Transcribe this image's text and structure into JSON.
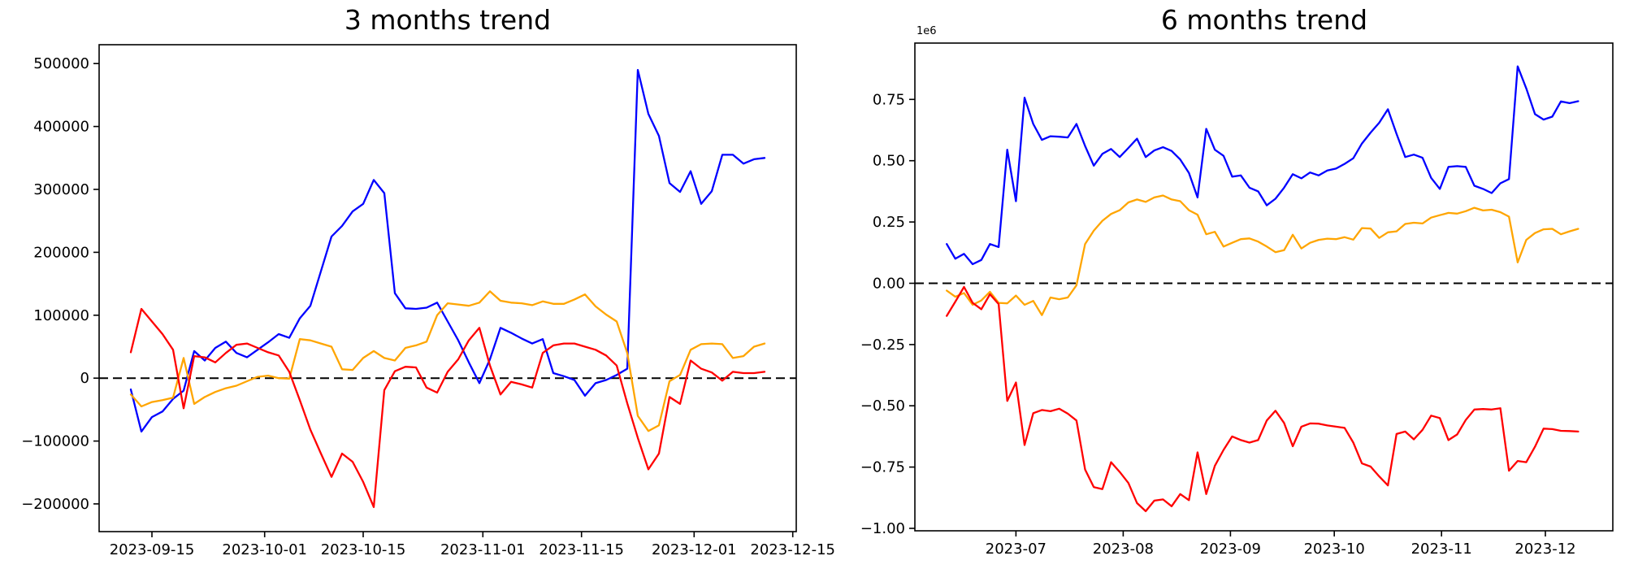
{
  "figure": {
    "background": "#ffffff",
    "text_color": "#000000"
  },
  "chart_data": [
    {
      "type": "line",
      "title": "3 months trend",
      "xlabel": "",
      "ylabel": "",
      "legend": null,
      "grid": false,
      "zero_line": true,
      "x_unit": "days since 2023-09-15",
      "x_start_date": "2023-09-12",
      "x_end_date": "2023-12-11",
      "xlim": [
        -7.5,
        91.5
      ],
      "ylim": [
        -244000,
        530000
      ],
      "xticks": [
        {
          "x": 0,
          "label": "2023-09-15"
        },
        {
          "x": 16,
          "label": "2023-10-01"
        },
        {
          "x": 30,
          "label": "2023-10-15"
        },
        {
          "x": 47,
          "label": "2023-11-01"
        },
        {
          "x": 61,
          "label": "2023-11-15"
        },
        {
          "x": 77,
          "label": "2023-12-01"
        },
        {
          "x": 91,
          "label": "2023-12-15"
        }
      ],
      "yticks": [
        {
          "v": -200000,
          "label": "−200000"
        },
        {
          "v": -100000,
          "label": "−100000"
        },
        {
          "v": 0,
          "label": "0"
        },
        {
          "v": 100000,
          "label": "100000"
        },
        {
          "v": 200000,
          "label": "200000"
        },
        {
          "v": 300000,
          "label": "300000"
        },
        {
          "v": 400000,
          "label": "400000"
        },
        {
          "v": 500000,
          "label": "500000"
        }
      ],
      "x": [
        -3,
        -1.5,
        0,
        1.5,
        3,
        4.5,
        6,
        7.5,
        9,
        10.5,
        12,
        13.5,
        15,
        16.5,
        18,
        19.5,
        21,
        22.5,
        24,
        25.5,
        27,
        28.5,
        30,
        31.5,
        33,
        34.5,
        36,
        37.5,
        39,
        40.5,
        42,
        43.5,
        45,
        46.5,
        48,
        49.5,
        51,
        52.5,
        54,
        55.5,
        57,
        58.5,
        60,
        61.5,
        63,
        64.5,
        66,
        67.5,
        69,
        70.5,
        72,
        73.5,
        75,
        76.5,
        78,
        79.5,
        81,
        82.5,
        84,
        85.5,
        87
      ],
      "series": [
        {
          "name": "blue",
          "color": "#0000ff",
          "values": [
            -18000,
            -85000,
            -62000,
            -53000,
            -33000,
            -20000,
            43000,
            28000,
            48000,
            58000,
            40000,
            33000,
            45000,
            57000,
            70000,
            64000,
            95000,
            115000,
            170000,
            225000,
            242000,
            265000,
            277000,
            315000,
            294000,
            135000,
            111000,
            110000,
            112000,
            120000,
            90000,
            60000,
            25000,
            -8000,
            30000,
            80000,
            72000,
            63000,
            55000,
            62000,
            8000,
            3000,
            -3000,
            -28000,
            -8000,
            -3000,
            5000,
            15000,
            490000,
            420000,
            385000,
            310000,
            296000,
            329000,
            277000,
            297000,
            355000,
            355000,
            341000,
            348000,
            350000
          ]
        },
        {
          "name": "orange",
          "color": "#ffa500",
          "values": [
            -26000,
            -45000,
            -38000,
            -35000,
            -31000,
            32000,
            -41000,
            -30000,
            -22000,
            -16000,
            -12000,
            -5000,
            2000,
            4000,
            0,
            -1000,
            62000,
            60000,
            55000,
            50000,
            14000,
            13000,
            32000,
            43000,
            32000,
            28000,
            48000,
            52000,
            58000,
            100000,
            119000,
            117000,
            115000,
            120000,
            138000,
            123000,
            120000,
            119000,
            116000,
            122000,
            118000,
            118000,
            125000,
            133000,
            114000,
            101000,
            90000,
            40000,
            -60000,
            -84000,
            -75000,
            -5000,
            5000,
            45000,
            54000,
            55000,
            54000,
            32000,
            35000,
            50000,
            55000
          ]
        },
        {
          "name": "red",
          "color": "#ff0000",
          "values": [
            41000,
            110000,
            90000,
            70000,
            45000,
            -48000,
            35000,
            33000,
            25000,
            40000,
            53000,
            55000,
            48000,
            41000,
            36000,
            10000,
            -35000,
            -82000,
            -120000,
            -157000,
            -120000,
            -133000,
            -165000,
            -205000,
            -19000,
            11000,
            18000,
            17000,
            -15000,
            -23000,
            10000,
            30000,
            60000,
            80000,
            20000,
            -26000,
            -6000,
            -10000,
            -15000,
            40000,
            52000,
            55000,
            55000,
            50000,
            45000,
            36000,
            20000,
            -40000,
            -95000,
            -145000,
            -120000,
            -30000,
            -41000,
            28000,
            15000,
            9000,
            -4000,
            10000,
            8000,
            8000,
            10000
          ]
        }
      ]
    },
    {
      "type": "line",
      "title": "6 months trend",
      "xlabel": "",
      "ylabel": "",
      "legend": null,
      "grid": false,
      "zero_line": true,
      "offset_text": "1e6",
      "x_unit": "days since 2023-07-01",
      "x_start_date": "2023-06-11",
      "x_end_date": "2023-12-11",
      "xlim": [
        -29.2,
        172.5
      ],
      "ylim": [
        -1010000,
        980000
      ],
      "xticks": [
        {
          "x": 0,
          "label": "2023-07"
        },
        {
          "x": 31,
          "label": "2023-08"
        },
        {
          "x": 62,
          "label": "2023-09"
        },
        {
          "x": 92,
          "label": "2023-10"
        },
        {
          "x": 123,
          "label": "2023-11"
        },
        {
          "x": 153,
          "label": "2023-12"
        }
      ],
      "yticks": [
        {
          "v": -1000000,
          "label": "−1.00"
        },
        {
          "v": -750000,
          "label": "−0.75"
        },
        {
          "v": -500000,
          "label": "−0.50"
        },
        {
          "v": -250000,
          "label": "−0.25"
        },
        {
          "v": 0,
          "label": "0.00"
        },
        {
          "v": 250000,
          "label": "0.25"
        },
        {
          "v": 500000,
          "label": "0.50"
        },
        {
          "v": 750000,
          "label": "0.75"
        }
      ],
      "x": [
        -20,
        -17.5,
        -15,
        -12.5,
        -10,
        -7.5,
        -5,
        -2.5,
        0,
        2.5,
        5,
        7.5,
        10,
        12.5,
        15,
        17.5,
        20,
        22.5,
        25,
        27.5,
        30,
        32.5,
        35,
        37.5,
        40,
        42.5,
        45,
        47.5,
        50,
        52.5,
        55,
        57.5,
        60,
        62.5,
        65,
        67.5,
        70,
        72.5,
        75,
        77.5,
        80,
        82.5,
        85,
        87.5,
        90,
        92.5,
        95,
        97.5,
        100,
        102.5,
        105,
        107.5,
        110,
        112.5,
        115,
        117.5,
        120,
        122.5,
        125,
        127.5,
        130,
        132.5,
        135,
        137.5,
        140,
        142.5,
        145,
        147.5,
        150,
        152.5,
        155,
        157.5,
        160,
        162.5
      ],
      "series": [
        {
          "name": "blue",
          "color": "#0000ff",
          "values": [
            160000,
            100000,
            120000,
            78000,
            95000,
            160000,
            148000,
            545000,
            335000,
            757000,
            650000,
            585000,
            600000,
            598000,
            595000,
            650000,
            560000,
            480000,
            528000,
            548000,
            515000,
            552000,
            590000,
            515000,
            542000,
            555000,
            540000,
            505000,
            450000,
            350000,
            630000,
            545000,
            520000,
            435000,
            440000,
            390000,
            375000,
            318000,
            345000,
            390000,
            445000,
            428000,
            452000,
            440000,
            460000,
            468000,
            487000,
            510000,
            570000,
            615000,
            655000,
            710000,
            610000,
            515000,
            525000,
            512000,
            430000,
            385000,
            475000,
            478000,
            475000,
            398000,
            385000,
            368000,
            408000,
            425000,
            885000,
            795000,
            690000,
            668000,
            680000,
            742000,
            735000,
            743000
          ]
        },
        {
          "name": "orange",
          "color": "#ffa500",
          "values": [
            -30000,
            -55000,
            -40000,
            -88000,
            -70000,
            -35000,
            -80000,
            -82000,
            -50000,
            -88000,
            -72000,
            -130000,
            -58000,
            -65000,
            -58000,
            -8000,
            160000,
            215000,
            255000,
            283000,
            298000,
            330000,
            342000,
            332000,
            350000,
            358000,
            342000,
            335000,
            298000,
            280000,
            200000,
            210000,
            150000,
            165000,
            180000,
            183000,
            170000,
            150000,
            127000,
            135000,
            198000,
            142000,
            165000,
            177000,
            182000,
            180000,
            188000,
            178000,
            225000,
            223000,
            185000,
            208000,
            212000,
            242000,
            247000,
            244000,
            268000,
            278000,
            287000,
            284000,
            294000,
            308000,
            297000,
            300000,
            290000,
            272000,
            85000,
            177000,
            205000,
            220000,
            222000,
            200000,
            212000,
            222000
          ]
        },
        {
          "name": "red",
          "color": "#ff0000",
          "values": [
            -133000,
            -75000,
            -15000,
            -80000,
            -106000,
            -45000,
            -85000,
            -480000,
            -405000,
            -660000,
            -530000,
            -517000,
            -522000,
            -512000,
            -532000,
            -560000,
            -760000,
            -832000,
            -840000,
            -730000,
            -770000,
            -815000,
            -897000,
            -930000,
            -887000,
            -882000,
            -910000,
            -860000,
            -885000,
            -690000,
            -860000,
            -745000,
            -680000,
            -625000,
            -640000,
            -650000,
            -640000,
            -560000,
            -520000,
            -570000,
            -665000,
            -585000,
            -572000,
            -573000,
            -580000,
            -585000,
            -590000,
            -650000,
            -735000,
            -748000,
            -788000,
            -825000,
            -615000,
            -605000,
            -637000,
            -598000,
            -540000,
            -550000,
            -640000,
            -617000,
            -558000,
            -515000,
            -513000,
            -515000,
            -510000,
            -765000,
            -725000,
            -730000,
            -667000,
            -593000,
            -595000,
            -602000,
            -603000,
            -605000
          ]
        }
      ]
    }
  ]
}
